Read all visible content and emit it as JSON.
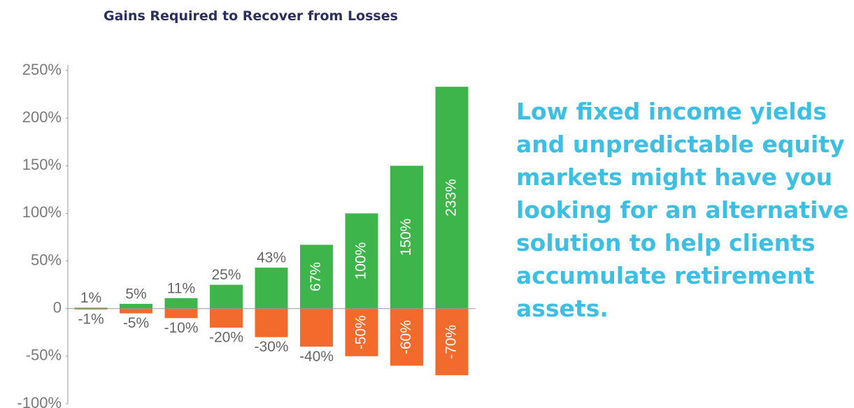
{
  "chart_data": {
    "type": "bar",
    "stacked": true,
    "title": "Gains Required to Recover from Losses",
    "series": [
      {
        "color": "#3db54a",
        "values": [
          1,
          5,
          11,
          25,
          43,
          67,
          100,
          150,
          233
        ],
        "value_labels": [
          "1%",
          "5%",
          "11%",
          "25%",
          "43%",
          "67%",
          "100%",
          "150%",
          "233%"
        ]
      },
      {
        "color": "#f26a2c",
        "values": [
          -1,
          -5,
          -10,
          -20,
          -30,
          -40,
          -50,
          -60,
          -70
        ],
        "value_labels": [
          "-1%",
          "-5%",
          "-10%",
          "-20%",
          "-30%",
          "-40%",
          "-50%",
          "-60%",
          "-70%"
        ]
      }
    ],
    "ylim": [
      -100,
      250
    ],
    "yticks": [
      {
        "value": -100,
        "label": "-100%"
      },
      {
        "value": -50,
        "label": "-50%"
      },
      0,
      {
        "value": 50,
        "label": "50%"
      },
      {
        "value": 100,
        "label": "100%"
      },
      {
        "value": 150,
        "label": "150%"
      },
      {
        "value": 200,
        "label": "200%"
      },
      {
        "value": 250,
        "label": "250%"
      }
    ],
    "grid": false,
    "annotation_lines": [
      "Low fixed income yields",
      "and unpredictable equity",
      "markets might have you",
      "looking for an alternative",
      "solution to help clients",
      "accumulate retirement",
      "assets."
    ]
  }
}
